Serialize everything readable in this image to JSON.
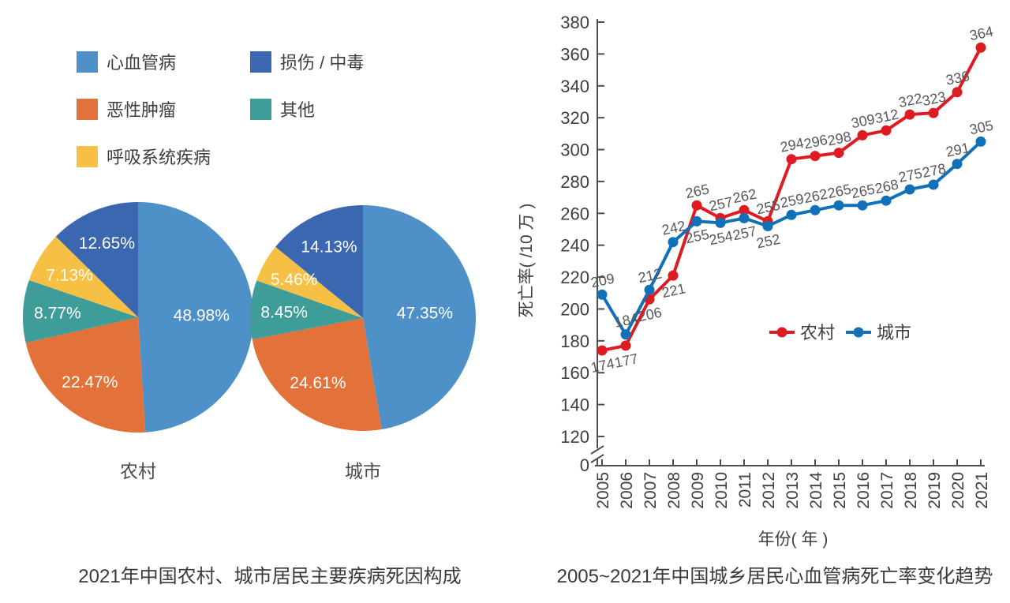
{
  "page": {
    "background": "#ffffff"
  },
  "chart_data": [
    {
      "type": "pie",
      "title": "2021年中国农村、城市居民主要疾病死因构成",
      "unit": "%",
      "legend": [
        {
          "label": "心血管病",
          "color": "#4e90c8"
        },
        {
          "label": "恶性肿瘤",
          "color": "#e2713a"
        },
        {
          "label": "呼吸系统疾病",
          "color": "#f6c044"
        },
        {
          "label": "损伤 / 中毒",
          "color": "#3a67b0"
        },
        {
          "label": "其他",
          "color": "#3f9d99"
        }
      ],
      "pies": [
        {
          "name": "农村",
          "slices": [
            {
              "label": "心血管病",
              "value": 48.98,
              "display": "48.98%",
              "color": "#4e90c8"
            },
            {
              "label": "恶性肿瘤",
              "value": 22.47,
              "display": "22.47%",
              "color": "#e2713a"
            },
            {
              "label": "其他",
              "value": 8.77,
              "display": "8.77%",
              "color": "#3f9d99"
            },
            {
              "label": "呼吸系统疾病",
              "value": 7.13,
              "display": "7.13%",
              "color": "#f6c044"
            },
            {
              "label": "损伤/中毒",
              "value": 12.65,
              "display": "12.65%",
              "color": "#3a67b0"
            }
          ]
        },
        {
          "name": "城市",
          "slices": [
            {
              "label": "心血管病",
              "value": 47.35,
              "display": "47.35%",
              "color": "#4e90c8"
            },
            {
              "label": "恶性肿瘤",
              "value": 24.61,
              "display": "24.61%",
              "color": "#e2713a"
            },
            {
              "label": "其他",
              "value": 8.45,
              "display": "8.45%",
              "color": "#3f9d99"
            },
            {
              "label": "呼吸系统疾病",
              "value": 5.46,
              "display": "5.46%",
              "color": "#f6c044"
            },
            {
              "label": "损伤/中毒",
              "value": 14.13,
              "display": "14.13%",
              "color": "#3a67b0"
            }
          ]
        }
      ]
    },
    {
      "type": "line",
      "title": "2005~2021年中国城乡居民心血管病死亡率变化趋势",
      "xlabel": "年份( 年 )",
      "ylabel": "死亡率( /10 万 )",
      "origin_label": "0",
      "axis_break": true,
      "ylim": [
        120,
        380
      ],
      "ytick_step": 20,
      "grid": false,
      "legend_position": "inside-middle-right",
      "x": [
        2005,
        2006,
        2007,
        2008,
        2009,
        2010,
        2011,
        2012,
        2013,
        2014,
        2015,
        2016,
        2017,
        2018,
        2019,
        2020,
        2021
      ],
      "series": [
        {
          "name": "农村",
          "color": "#df1b22",
          "values": [
            174,
            177,
            206,
            221,
            265,
            257,
            262,
            255,
            294,
            296,
            298,
            309,
            312,
            322,
            323,
            336,
            364
          ],
          "label_sides": [
            "below",
            "below",
            "below",
            "below",
            "above",
            "above",
            "above",
            "above",
            "above",
            "above",
            "above",
            "above",
            "above",
            "above",
            "above",
            "above",
            "above"
          ]
        },
        {
          "name": "城市",
          "color": "#1171b8",
          "values": [
            209,
            184,
            212,
            242,
            255,
            254,
            257,
            252,
            259,
            262,
            265,
            265,
            268,
            275,
            278,
            291,
            305
          ],
          "label_sides": [
            "above",
            "above",
            "above",
            "above",
            "below",
            "below",
            "below",
            "below",
            "above",
            "above",
            "above",
            "above",
            "above",
            "above",
            "above",
            "above",
            "above"
          ]
        }
      ]
    }
  ]
}
